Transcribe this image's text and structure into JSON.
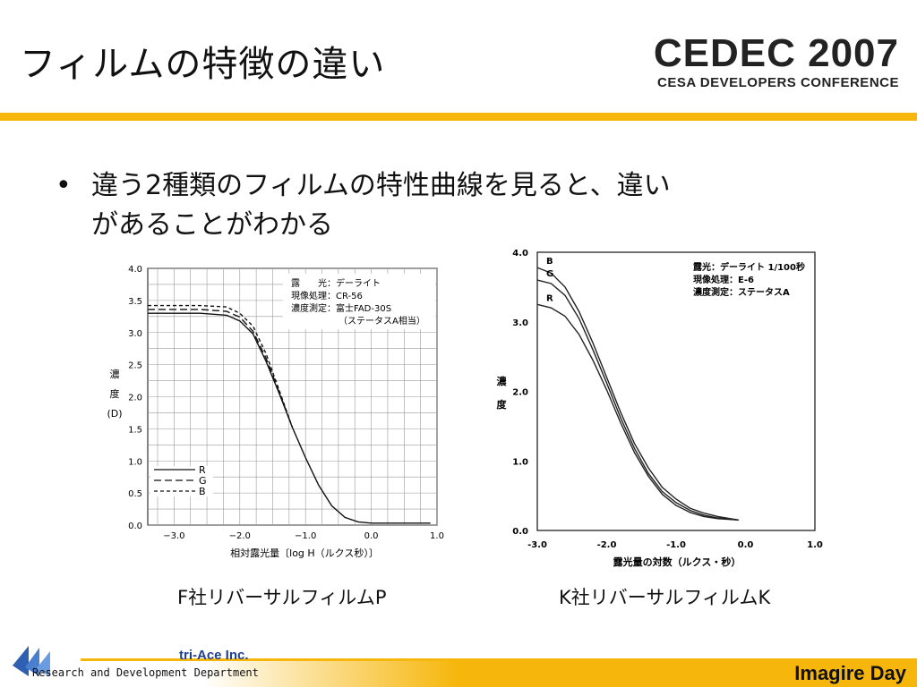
{
  "slide": {
    "title": "フィルムの特徴の違い",
    "logo_main": "CEDEC 2007",
    "logo_sub": "CESA DEVELOPERS CONFERENCE",
    "bullet_symbol": "•",
    "bullet_line1": "違う2種類のフィルムの特性曲線を見ると、違い",
    "bullet_line2": "があることがわかる",
    "caption_left": "F社リバーサルフィルムP",
    "caption_right": "K社リバーサルフィルムK",
    "footer_company": "tri-Ace Inc.",
    "footer_dept": "Research and Development Department",
    "footer_event": "Imagire Day"
  },
  "colors": {
    "accent": "#f6b60b",
    "company_blue": "#1f3f8f"
  },
  "chart_data": [
    {
      "type": "line",
      "xlabel": "相対露光量〔log H（ルクス秒）〕",
      "ylabel": [
        "濃",
        "度",
        "(D)"
      ],
      "xlim": [
        -3.4,
        1.0
      ],
      "ylim": [
        0.0,
        4.0
      ],
      "xticks": [
        "−3.0",
        "−2.0",
        "−1.0",
        "0.0",
        "1.0"
      ],
      "xtick_values": [
        -3.0,
        -2.0,
        -1.0,
        0.0,
        1.0
      ],
      "yticks": [
        "0.0",
        "0.5",
        "1.0",
        "1.5",
        "2.0",
        "2.5",
        "3.0",
        "3.5",
        "4.0"
      ],
      "grid": true,
      "annotation": [
        "露　　光：デーライト",
        "現像処理：CR-56",
        "濃度測定：富士FAD-30S",
        "（ステータスA相当）"
      ],
      "legend_labels": [
        "R",
        "G",
        "B"
      ],
      "series": [
        {
          "name": "R",
          "style": "solid",
          "x": [
            -3.4,
            -2.6,
            -2.2,
            -2.0,
            -1.8,
            -1.6,
            -1.4,
            -1.2,
            -1.0,
            -0.8,
            -0.6,
            -0.4,
            -0.2,
            0.0,
            0.2,
            0.4,
            0.6,
            0.9
          ],
          "y": [
            3.3,
            3.3,
            3.27,
            3.18,
            2.98,
            2.55,
            2.05,
            1.52,
            1.05,
            0.62,
            0.3,
            0.12,
            0.05,
            0.03,
            0.03,
            0.03,
            0.03,
            0.03
          ]
        },
        {
          "name": "G",
          "style": "dashed",
          "x": [
            -3.4,
            -2.6,
            -2.2,
            -2.0,
            -1.8,
            -1.6,
            -1.4,
            -1.2
          ],
          "y": [
            3.36,
            3.36,
            3.33,
            3.24,
            3.02,
            2.6,
            2.07,
            1.52
          ]
        },
        {
          "name": "B",
          "style": "dashdot",
          "x": [
            -3.4,
            -2.6,
            -2.2,
            -2.0,
            -1.8,
            -1.6,
            -1.4,
            -1.2
          ],
          "y": [
            3.42,
            3.42,
            3.4,
            3.3,
            3.1,
            2.67,
            2.1,
            1.52
          ]
        }
      ]
    },
    {
      "type": "line",
      "xlabel": "露光量の対数（ルクス・秒）",
      "ylabel": [
        "濃",
        "度"
      ],
      "xlim": [
        -3.0,
        1.0
      ],
      "ylim": [
        0.0,
        4.0
      ],
      "xticks": [
        "-3.0",
        "-2.0",
        "-1.0",
        "0.0",
        "1.0"
      ],
      "xtick_values": [
        -3.0,
        -2.0,
        -1.0,
        0.0,
        1.0
      ],
      "yticks": [
        "0.0",
        "1.0",
        "2.0",
        "3.0",
        "4.0"
      ],
      "ytick_values": [
        0.0,
        1.0,
        2.0,
        3.0,
        4.0
      ],
      "grid": false,
      "annotation": [
        "露光：デーライト 1/100秒",
        "現像処理：E-6",
        "濃度測定：ステータスA"
      ],
      "series": [
        {
          "name": "B",
          "x": [
            -3.0,
            -2.8,
            -2.6,
            -2.4,
            -2.2,
            -2.0,
            -1.8,
            -1.6,
            -1.4,
            -1.2,
            -1.0,
            -0.8,
            -0.6,
            -0.4,
            -0.1
          ],
          "y": [
            3.78,
            3.7,
            3.5,
            3.15,
            2.7,
            2.2,
            1.7,
            1.25,
            0.9,
            0.62,
            0.45,
            0.32,
            0.25,
            0.2,
            0.15
          ]
        },
        {
          "name": "G",
          "x": [
            -3.0,
            -2.8,
            -2.6,
            -2.4,
            -2.2,
            -2.0,
            -1.8,
            -1.6,
            -1.4,
            -1.2,
            -1.0,
            -0.8,
            -0.6,
            -0.4,
            -0.1
          ],
          "y": [
            3.6,
            3.55,
            3.38,
            3.05,
            2.6,
            2.12,
            1.62,
            1.18,
            0.82,
            0.56,
            0.4,
            0.29,
            0.22,
            0.18,
            0.15
          ]
        },
        {
          "name": "R",
          "x": [
            -3.0,
            -2.8,
            -2.6,
            -2.4,
            -2.2,
            -2.0,
            -1.8,
            -1.6,
            -1.4,
            -1.2,
            -1.0,
            -0.8,
            -0.6,
            -0.4,
            -0.1
          ],
          "y": [
            3.25,
            3.2,
            3.08,
            2.82,
            2.45,
            2.02,
            1.55,
            1.12,
            0.78,
            0.52,
            0.36,
            0.26,
            0.2,
            0.17,
            0.15
          ]
        }
      ]
    }
  ]
}
